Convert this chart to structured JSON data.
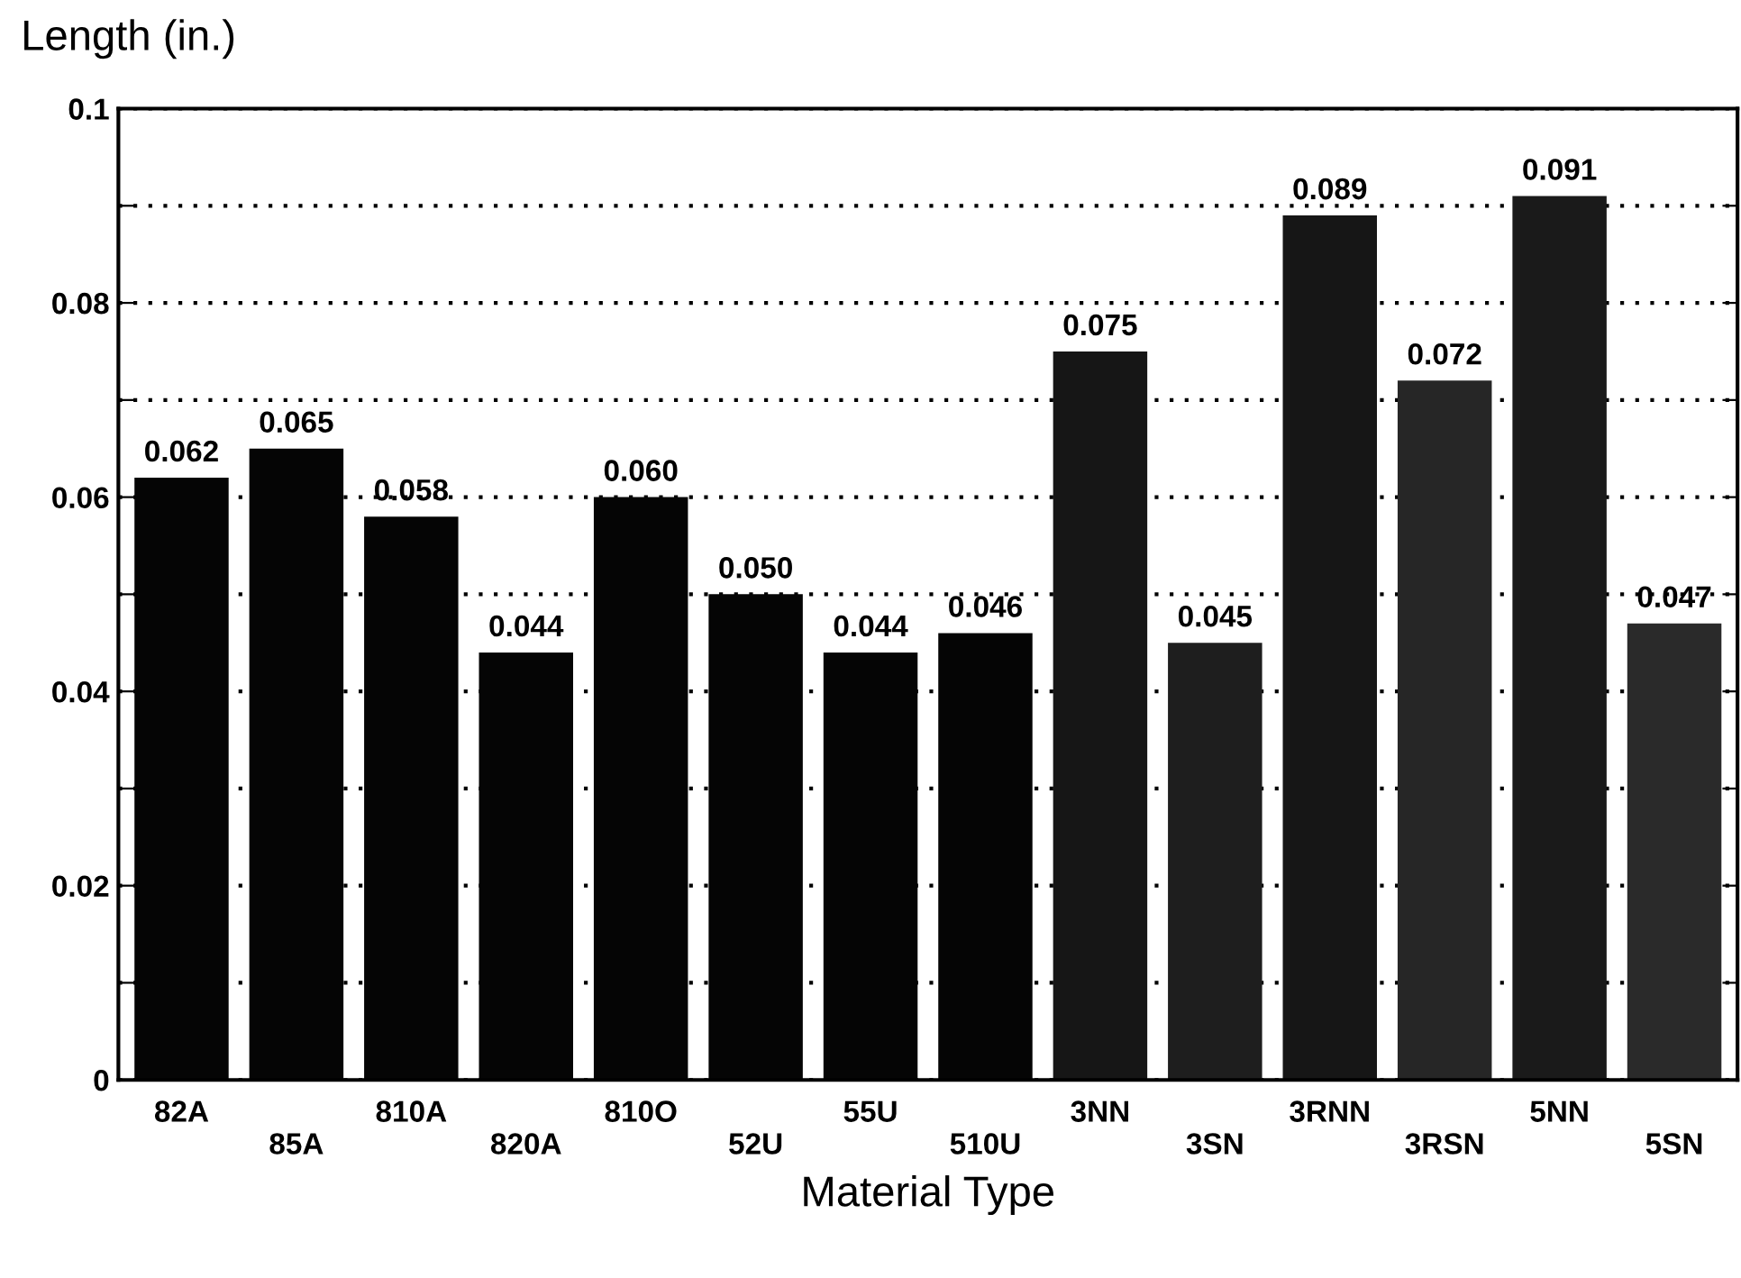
{
  "chart_data": {
    "type": "bar",
    "xlabel": "Material Type",
    "ylabel": "Length (in.)",
    "categories": [
      "82A",
      "85A",
      "810A",
      "820A",
      "810O",
      "52U",
      "55U",
      "510U",
      "3NN",
      "3SN",
      "3RNN",
      "3RSN",
      "5NN",
      "5SN"
    ],
    "values": [
      0.062,
      0.065,
      0.058,
      0.044,
      0.06,
      0.05,
      0.044,
      0.046,
      0.075,
      0.045,
      0.089,
      0.072,
      0.091,
      0.047
    ],
    "value_labels": [
      "0.062",
      "0.065",
      "0.058",
      "0.044",
      "0.060",
      "0.050",
      "0.044",
      "0.046",
      "0.075",
      "0.045",
      "0.089",
      "0.072",
      "0.091",
      "0.047"
    ],
    "colors": [
      "#050505",
      "#050505",
      "#050505",
      "#050505",
      "#050505",
      "#050505",
      "#050505",
      "#050505",
      "#161616",
      "#1e1e1e",
      "#161616",
      "#262626",
      "#1a1a1a",
      "#2a2a2a"
    ],
    "ylim": [
      0,
      0.1
    ],
    "yticks": [
      0,
      {
        "value": 0.01,
        "label": null
      },
      0.02,
      {
        "value": 0.03,
        "label": null
      },
      0.04,
      {
        "value": 0.05,
        "label": null
      },
      0.06,
      {
        "value": 0.07,
        "label": null
      },
      0.08,
      {
        "value": 0.09,
        "label": null
      },
      0.1
    ],
    "grid": "y"
  }
}
